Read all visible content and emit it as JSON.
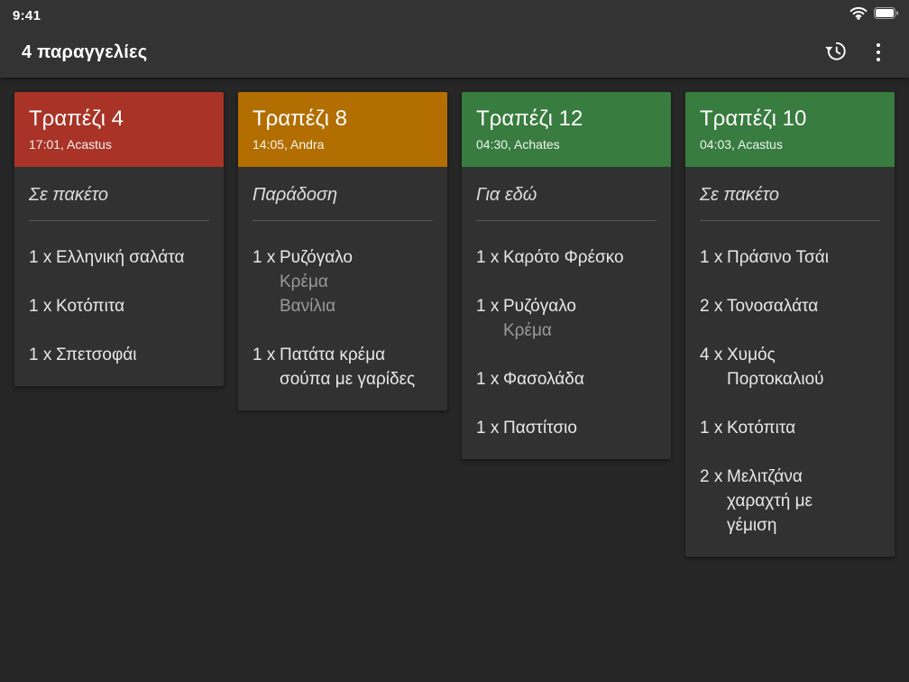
{
  "status_bar": {
    "time": "9:41",
    "icons": [
      "wifi-icon",
      "battery-icon"
    ]
  },
  "app_bar": {
    "title": "4 παραγγελίες",
    "actions": [
      {
        "icon": "history-icon"
      },
      {
        "icon": "overflow-menu-icon"
      }
    ]
  },
  "colors": {
    "background": "#262626",
    "chrome": "#333333",
    "card_body": "#313131",
    "header_red": "#a93327",
    "header_orange": "#b26e00",
    "header_green": "#387c3f",
    "item_text": "#e8e8e8",
    "modifier_text": "#9a9a9a",
    "divider": "#565656"
  },
  "orders": [
    {
      "table": "Τραπέζι 4",
      "meta": "17:01, Acastus",
      "type": "Σε πακέτο",
      "header_color": "#a93327",
      "items": [
        {
          "qty": "1 x",
          "name": "Ελληνική σαλάτα",
          "modifiers": []
        },
        {
          "qty": "1 x",
          "name": "Κοτόπιτα",
          "modifiers": []
        },
        {
          "qty": "1 x",
          "name": "Σπετσοφάι",
          "modifiers": []
        }
      ]
    },
    {
      "table": "Τραπέζι 8",
      "meta": "14:05, Andra",
      "type": "Παράδοση",
      "header_color": "#b26e00",
      "items": [
        {
          "qty": "1 x",
          "name": "Ρυζόγαλο",
          "modifiers": [
            "Κρέμα",
            "Βανίλια"
          ]
        },
        {
          "qty": "1 x",
          "name": "Πατάτα κρέμα\nσούπα με γαρίδες",
          "modifiers": []
        }
      ]
    },
    {
      "table": "Τραπέζι 12",
      "meta": "04:30, Achates",
      "type": "Για εδώ",
      "header_color": "#387c3f",
      "items": [
        {
          "qty": "1 x",
          "name": "Καρότο Φρέσκο",
          "modifiers": []
        },
        {
          "qty": "1 x",
          "name": "Ρυζόγαλο",
          "modifiers": [
            "Κρέμα"
          ]
        },
        {
          "qty": "1 x",
          "name": "Φασολάδα",
          "modifiers": []
        },
        {
          "qty": "1 x",
          "name": "Παστίτσιο",
          "modifiers": []
        }
      ]
    },
    {
      "table": "Τραπέζι 10",
      "meta": "04:03, Acastus",
      "type": "Σε πακέτο",
      "header_color": "#387c3f",
      "items": [
        {
          "qty": "1 x",
          "name": "Πράσινο Τσάι",
          "modifiers": []
        },
        {
          "qty": "2 x",
          "name": "Τονοσαλάτα",
          "modifiers": []
        },
        {
          "qty": "4 x",
          "name": "Χυμός\nΠορτοκαλιού",
          "modifiers": []
        },
        {
          "qty": "1 x",
          "name": "Κοτόπιτα",
          "modifiers": []
        },
        {
          "qty": "2 x",
          "name": "Μελιτζάνα\nχαραχτή με\nγέμιση",
          "modifiers": []
        }
      ]
    }
  ]
}
